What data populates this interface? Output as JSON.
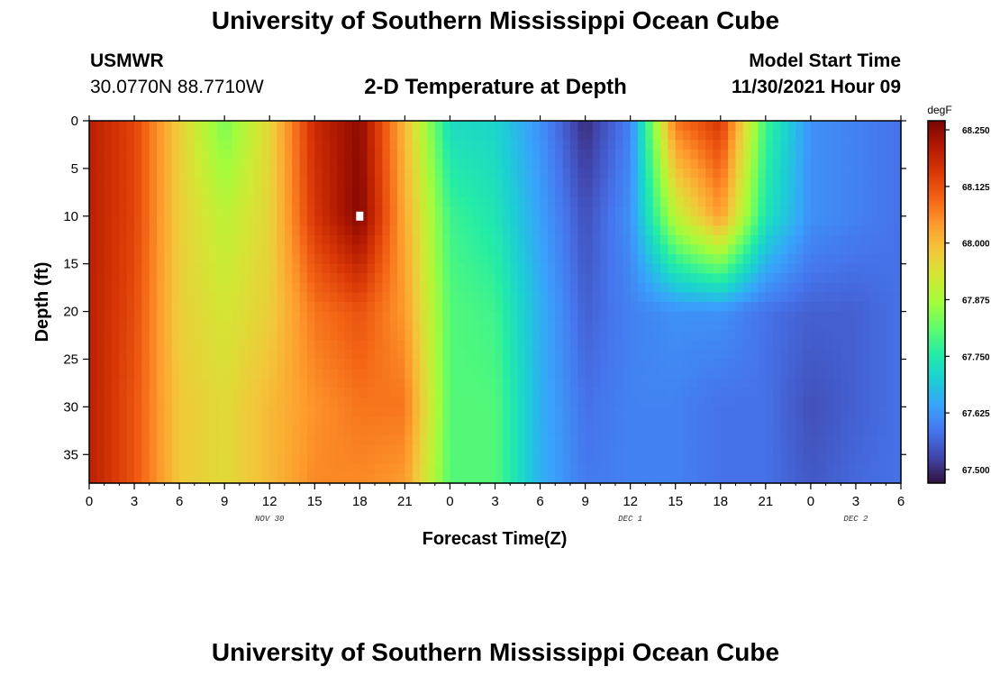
{
  "header": {
    "title": "University of Southern Mississippi Ocean Cube",
    "station": "USMWR",
    "coordinates": "30.0770N  88.7710W",
    "plot_title": "2-D Temperature at Depth",
    "model_start_label": "Model Start Time",
    "model_start_value": "11/30/2021 Hour 09"
  },
  "footer": {
    "title": "University of Southern Mississippi Ocean Cube"
  },
  "colors": {
    "colormap": [
      "#30123b",
      "#4145ab",
      "#4675ed",
      "#39a2fc",
      "#1bcfd4",
      "#24eca6",
      "#61fc6c",
      "#a4fc3b",
      "#d1e834",
      "#f3c63a",
      "#fe9b2d",
      "#f36315",
      "#d93806",
      "#b11901",
      "#7a0402"
    ],
    "marker": "#ffffff"
  },
  "chart_data": {
    "type": "heatmap",
    "title": "2-D Temperature at Depth",
    "xlabel": "Forecast Time(Z)",
    "ylabel": "Depth (ft)",
    "x_range_hours": [
      0,
      54
    ],
    "x_tick_labels": [
      "0",
      "3",
      "6",
      "9",
      "12",
      "15",
      "18",
      "21",
      "0",
      "3",
      "6",
      "9",
      "12",
      "15",
      "18",
      "21",
      "0",
      "3",
      "6"
    ],
    "date_labels": [
      {
        "label": "NOV 30",
        "hour": 12
      },
      {
        "label": "DEC 1",
        "hour": 36
      },
      {
        "label": "DEC 2",
        "hour": 51
      }
    ],
    "y_range_ft": [
      0,
      38
    ],
    "y_ticks": [
      0,
      5,
      10,
      15,
      20,
      25,
      30,
      35
    ],
    "colorbar": {
      "unit": "degF",
      "min": 67.47,
      "max": 68.27,
      "ticks": [
        "68.250",
        "68.125",
        "68.000",
        "67.875",
        "67.750",
        "67.625",
        "67.500"
      ],
      "tick_values": [
        68.25,
        68.125,
        68.0,
        67.875,
        67.75,
        67.625,
        67.5
      ]
    },
    "depth_levels_ft": [
      0,
      10,
      20,
      30,
      38
    ],
    "time_points_hours": [
      0,
      3,
      6,
      9,
      12,
      15,
      18,
      21,
      24,
      27,
      30,
      33,
      36,
      39,
      42,
      45,
      48,
      51,
      54
    ],
    "temperature_degF": [
      [
        68.2,
        68.14,
        67.97,
        67.83,
        67.96,
        68.18,
        68.25,
        68.0,
        67.72,
        67.71,
        67.62,
        67.5,
        67.6,
        68.08,
        68.16,
        67.78,
        67.62,
        67.6,
        67.58
      ],
      [
        68.2,
        68.14,
        67.97,
        67.9,
        67.96,
        68.16,
        68.26,
        68.02,
        67.78,
        67.74,
        67.64,
        67.54,
        67.62,
        67.9,
        68.04,
        67.74,
        67.62,
        67.6,
        67.58
      ],
      [
        68.2,
        68.13,
        67.97,
        67.93,
        67.97,
        68.08,
        68.12,
        68.04,
        67.8,
        67.78,
        67.66,
        67.56,
        67.6,
        67.62,
        67.62,
        67.58,
        67.56,
        67.56,
        67.58
      ],
      [
        68.2,
        68.12,
        67.98,
        67.95,
        68.0,
        68.05,
        68.08,
        68.08,
        67.8,
        67.8,
        67.66,
        67.58,
        67.6,
        67.6,
        67.58,
        67.58,
        67.54,
        67.56,
        67.58
      ],
      [
        68.2,
        68.12,
        67.98,
        67.95,
        68.0,
        68.06,
        68.06,
        68.04,
        67.8,
        67.8,
        67.66,
        67.59,
        67.6,
        67.6,
        67.58,
        67.58,
        67.55,
        67.57,
        67.58
      ]
    ],
    "marker": {
      "hour": 18,
      "depth_ft": 10
    }
  }
}
